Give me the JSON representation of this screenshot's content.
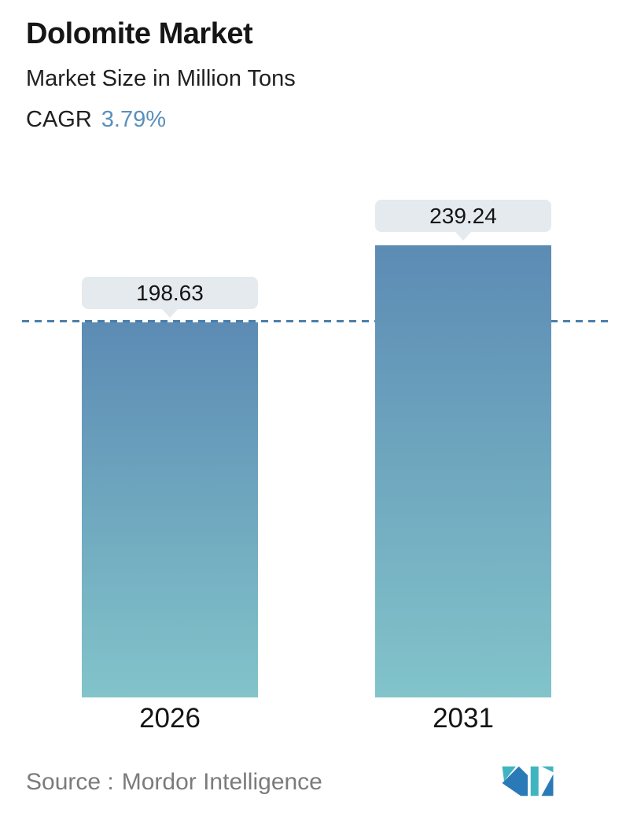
{
  "header": {
    "title": "Dolomite Market",
    "subtitle": "Market Size in Million Tons",
    "cagr_label": "CAGR",
    "cagr_value": "3.79%"
  },
  "chart_data": {
    "type": "bar",
    "title": "Dolomite Market",
    "subtitle": "Market Size in Million Tons",
    "cagr": "3.79%",
    "unit": "Million Tons",
    "categories": [
      "2026",
      "2031"
    ],
    "values": [
      198.63,
      239.24
    ],
    "value_labels": [
      "198.63",
      "239.24"
    ],
    "baseline": 0,
    "grid": false,
    "legend": false,
    "reference_line": {
      "value": 198.63,
      "style": "dashed",
      "color": "#4b7fa9"
    },
    "bar_gradient_top": "#5c8bb4",
    "bar_gradient_bottom": "#82c4ca",
    "callout_background": "#e4eaee"
  },
  "footer": {
    "source_label": "Source :",
    "source_value": "Mordor Intelligence"
  },
  "colors": {
    "accent_blue": "#5b8fbd",
    "dashed_line": "#4b7fa9",
    "logo_blue": "#2a7ab8",
    "logo_teal": "#41b5bf",
    "text_dark": "#161616",
    "text_gray": "#7b7b7b"
  }
}
